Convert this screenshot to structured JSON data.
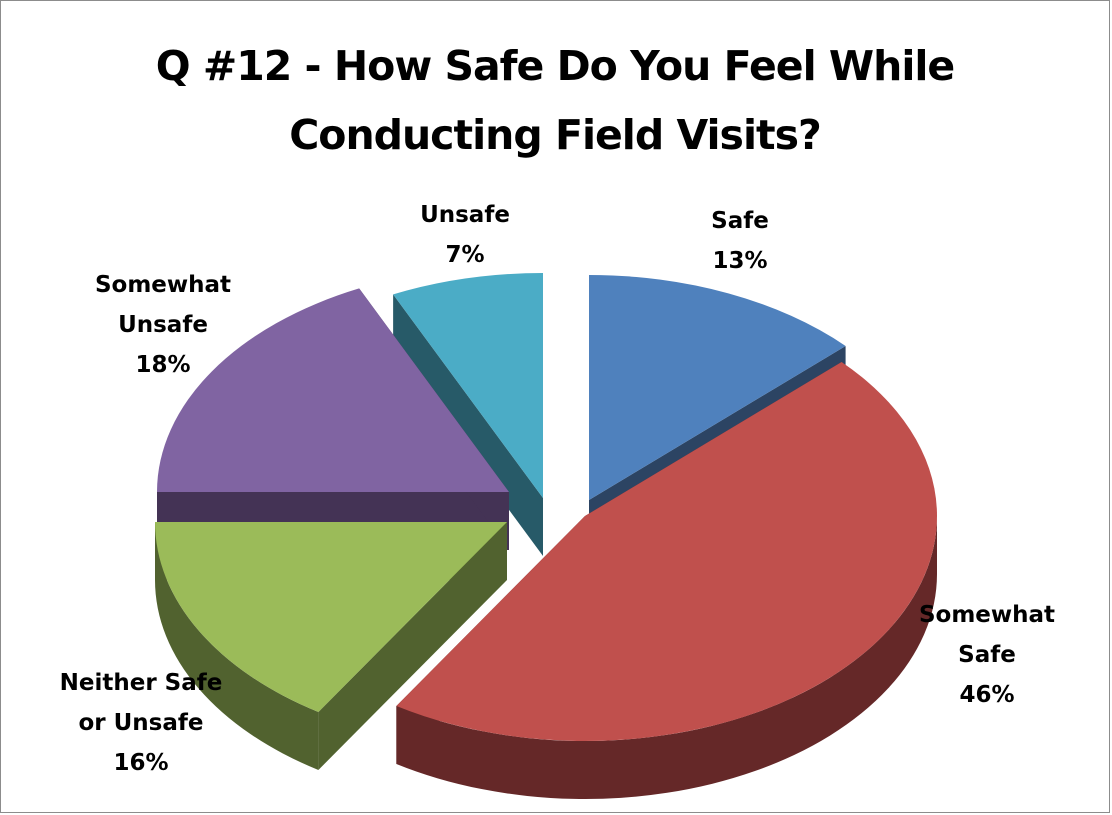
{
  "chart_data": {
    "type": "pie",
    "title": "Q #12 - How Safe Do You Feel While Conducting Field Visits?",
    "title_lines": [
      "Q #12 - How Safe Do You Feel While",
      "Conducting Field Visits?"
    ],
    "three_d": true,
    "exploded": true,
    "legend": "none",
    "slices": [
      {
        "name": "Safe",
        "label_lines": [
          "Safe",
          "13%"
        ],
        "value": 13,
        "color": "#4f81bd",
        "side_color": "#2c4463"
      },
      {
        "name": "Somewhat Safe",
        "label_lines": [
          "Somewhat",
          "Safe",
          "46%"
        ],
        "value": 46,
        "color": "#c0504d",
        "side_color": "#652828"
      },
      {
        "name": "Neither Safe or Unsafe",
        "label_lines": [
          "Neither Safe",
          "or Unsafe",
          "16%"
        ],
        "value": 16,
        "color": "#9bbb59",
        "side_color": "#51622f"
      },
      {
        "name": "Somewhat Unsafe",
        "label_lines": [
          "Somewhat",
          "Unsafe",
          "18%"
        ],
        "value": 18,
        "color": "#8064a2",
        "side_color": "#443355"
      },
      {
        "name": "Unsafe",
        "label_lines": [
          "Unsafe",
          "7%"
        ],
        "value": 7,
        "color": "#4bacc6",
        "side_color": "#275a68"
      }
    ]
  }
}
